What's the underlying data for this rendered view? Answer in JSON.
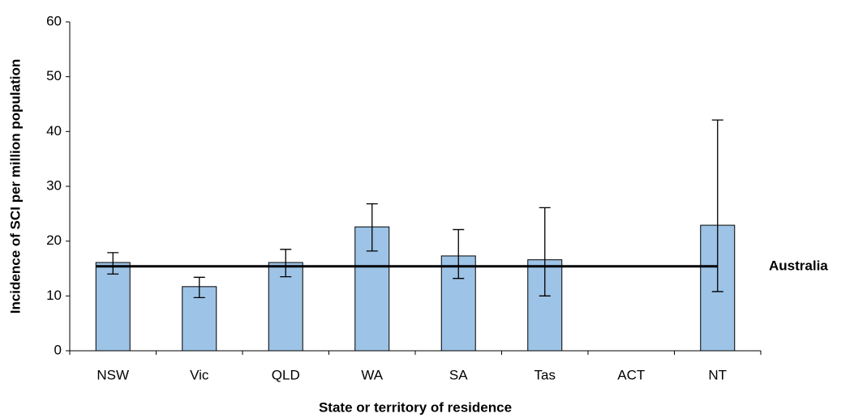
{
  "chart_data": {
    "type": "bar",
    "x_label": "State or territory of residence",
    "y_label": "Incidence of SCI per million population",
    "categories": [
      "NSW",
      "Vic",
      "QLD",
      "WA",
      "SA",
      "Tas",
      "ACT",
      "NT"
    ],
    "values": [
      16.1,
      11.7,
      16.1,
      22.6,
      17.3,
      16.6,
      null,
      22.9
    ],
    "ci_lower": [
      14.0,
      9.7,
      13.5,
      18.2,
      13.2,
      10.0,
      null,
      10.8
    ],
    "ci_upper": [
      17.9,
      13.4,
      18.5,
      26.8,
      22.1,
      26.1,
      null,
      42.1
    ],
    "color": "#9dc3e6",
    "reference": {
      "name": "Australia",
      "value": 15.4
    },
    "ylim": [
      0,
      60
    ],
    "yticks": [
      0,
      10,
      20,
      30,
      40,
      50,
      60
    ]
  }
}
